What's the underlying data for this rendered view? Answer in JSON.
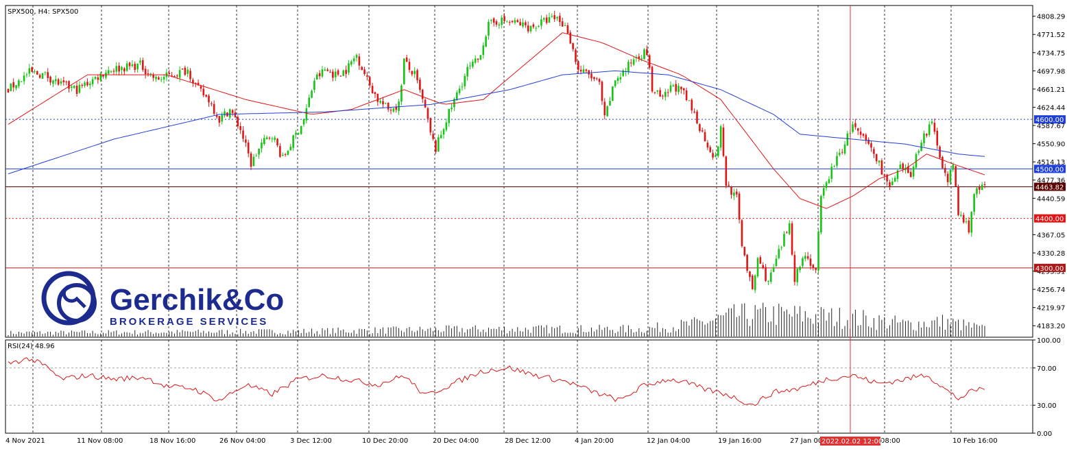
{
  "chart_data": [
    {
      "type": "candlestick",
      "title": "SPX500, H4:  SPX500",
      "symbol": "SPX500",
      "timeframe": "H4",
      "ylim": [
        4160,
        4830
      ],
      "price_ticks": [
        "4808.29",
        "4771.52",
        "4734.75",
        "4697.98",
        "4661.21",
        "4624.44",
        "4587.67",
        "4550.90",
        "4514.13",
        "4477.36",
        "4440.59",
        "4367.05",
        "4330.28",
        "4293.51",
        "4256.74",
        "4219.97",
        "4183.20"
      ],
      "x_labels": [
        "4 Nov 2021",
        "11 Nov 08:00",
        "18 Nov 16:00",
        "26 Nov 04:00",
        "3 Dec 12:00",
        "10 Dec 20:00",
        "20 Dec 04:00",
        "28 Dec 12:00",
        "4 Jan 20:00",
        "12 Jan 04:00",
        "19 Jan 16:00",
        "27 Jan 00:00",
        "08:00",
        "10 Feb 16:00"
      ],
      "cursor_time_label": "2022.02.02 12:00",
      "close_path_anchors": [
        [
          0,
          4660
        ],
        [
          8,
          4695
        ],
        [
          14,
          4690
        ],
        [
          20,
          4670
        ],
        [
          26,
          4660
        ],
        [
          32,
          4680
        ],
        [
          38,
          4700
        ],
        [
          44,
          4705
        ],
        [
          50,
          4710
        ],
        [
          56,
          4680
        ],
        [
          62,
          4690
        ],
        [
          68,
          4700
        ],
        [
          72,
          4660
        ],
        [
          76,
          4640
        ],
        [
          80,
          4600
        ],
        [
          84,
          4620
        ],
        [
          88,
          4580
        ],
        [
          92,
          4510
        ],
        [
          96,
          4550
        ],
        [
          100,
          4570
        ],
        [
          104,
          4520
        ],
        [
          108,
          4560
        ],
        [
          112,
          4600
        ],
        [
          116,
          4680
        ],
        [
          120,
          4700
        ],
        [
          124,
          4690
        ],
        [
          128,
          4700
        ],
        [
          132,
          4730
        ],
        [
          136,
          4680
        ],
        [
          140,
          4640
        ],
        [
          144,
          4620
        ],
        [
          148,
          4630
        ],
        [
          150,
          4720
        ],
        [
          152,
          4700
        ],
        [
          154,
          4690
        ],
        [
          158,
          4620
        ],
        [
          160,
          4570
        ],
        [
          162,
          4540
        ],
        [
          166,
          4600
        ],
        [
          170,
          4650
        ],
        [
          174,
          4700
        ],
        [
          178,
          4720
        ],
        [
          182,
          4790
        ],
        [
          186,
          4800
        ],
        [
          192,
          4795
        ],
        [
          198,
          4785
        ],
        [
          204,
          4800
        ],
        [
          208,
          4805
        ],
        [
          212,
          4780
        ],
        [
          216,
          4700
        ],
        [
          220,
          4690
        ],
        [
          224,
          4670
        ],
        [
          226,
          4600
        ],
        [
          230,
          4680
        ],
        [
          234,
          4700
        ],
        [
          238,
          4730
        ],
        [
          242,
          4735
        ],
        [
          244,
          4660
        ],
        [
          248,
          4640
        ],
        [
          252,
          4670
        ],
        [
          256,
          4650
        ],
        [
          260,
          4610
        ],
        [
          264,
          4560
        ],
        [
          268,
          4520
        ],
        [
          270,
          4580
        ],
        [
          272,
          4470
        ],
        [
          276,
          4440
        ],
        [
          278,
          4350
        ],
        [
          282,
          4250
        ],
        [
          284,
          4320
        ],
        [
          288,
          4270
        ],
        [
          292,
          4330
        ],
        [
          296,
          4390
        ],
        [
          298,
          4280
        ],
        [
          302,
          4330
        ],
        [
          306,
          4290
        ],
        [
          308,
          4440
        ],
        [
          312,
          4500
        ],
        [
          316,
          4540
        ],
        [
          320,
          4590
        ],
        [
          322,
          4570
        ],
        [
          326,
          4550
        ],
        [
          330,
          4510
        ],
        [
          334,
          4460
        ],
        [
          338,
          4500
        ],
        [
          342,
          4490
        ],
        [
          346,
          4560
        ],
        [
          350,
          4590
        ],
        [
          352,
          4550
        ],
        [
          356,
          4470
        ],
        [
          358,
          4510
        ],
        [
          360,
          4410
        ],
        [
          364,
          4380
        ],
        [
          366,
          4450
        ],
        [
          370,
          4465
        ]
      ],
      "bar_count": 371,
      "sma_short_anchors": [
        [
          0,
          4590
        ],
        [
          30,
          4690
        ],
        [
          60,
          4690
        ],
        [
          90,
          4640
        ],
        [
          115,
          4610
        ],
        [
          130,
          4620
        ],
        [
          150,
          4660
        ],
        [
          165,
          4630
        ],
        [
          180,
          4640
        ],
        [
          200,
          4730
        ],
        [
          210,
          4775
        ],
        [
          225,
          4755
        ],
        [
          240,
          4720
        ],
        [
          255,
          4690
        ],
        [
          270,
          4640
        ],
        [
          290,
          4500
        ],
        [
          300,
          4440
        ],
        [
          310,
          4420
        ],
        [
          320,
          4445
        ],
        [
          330,
          4480
        ],
        [
          340,
          4500
        ],
        [
          348,
          4530
        ],
        [
          358,
          4510
        ],
        [
          370,
          4488
        ]
      ],
      "sma_long_anchors": [
        [
          0,
          4490
        ],
        [
          40,
          4560
        ],
        [
          80,
          4610
        ],
        [
          120,
          4615
        ],
        [
          160,
          4630
        ],
        [
          190,
          4660
        ],
        [
          210,
          4690
        ],
        [
          230,
          4698
        ],
        [
          250,
          4690
        ],
        [
          270,
          4660
        ],
        [
          290,
          4610
        ],
        [
          300,
          4570
        ],
        [
          320,
          4560
        ],
        [
          340,
          4550
        ],
        [
          360,
          4530
        ],
        [
          370,
          4525
        ]
      ],
      "rsi_anchors": [
        [
          0,
          75
        ],
        [
          8,
          80
        ],
        [
          14,
          72
        ],
        [
          20,
          58
        ],
        [
          30,
          62
        ],
        [
          40,
          58
        ],
        [
          52,
          60
        ],
        [
          60,
          50
        ],
        [
          70,
          48
        ],
        [
          80,
          35
        ],
        [
          90,
          52
        ],
        [
          100,
          42
        ],
        [
          110,
          58
        ],
        [
          120,
          62
        ],
        [
          140,
          52
        ],
        [
          150,
          62
        ],
        [
          158,
          40
        ],
        [
          170,
          55
        ],
        [
          180,
          67
        ],
        [
          190,
          70
        ],
        [
          200,
          62
        ],
        [
          212,
          55
        ],
        [
          222,
          44
        ],
        [
          232,
          35
        ],
        [
          240,
          50
        ],
        [
          250,
          58
        ],
        [
          256,
          55
        ],
        [
          264,
          47
        ],
        [
          272,
          42
        ],
        [
          282,
          30
        ],
        [
          290,
          44
        ],
        [
          300,
          48
        ],
        [
          310,
          58
        ],
        [
          320,
          62
        ],
        [
          330,
          53
        ],
        [
          340,
          58
        ],
        [
          348,
          63
        ],
        [
          356,
          45
        ],
        [
          360,
          37
        ],
        [
          366,
          46
        ],
        [
          370,
          48
        ]
      ],
      "volume_profile_anchors": [
        [
          0,
          0.15
        ],
        [
          100,
          0.2
        ],
        [
          180,
          0.3
        ],
        [
          240,
          0.3
        ],
        [
          260,
          0.5
        ],
        [
          276,
          0.85
        ],
        [
          290,
          0.9
        ],
        [
          320,
          0.75
        ],
        [
          340,
          0.5
        ],
        [
          355,
          0.6
        ],
        [
          370,
          0.3
        ]
      ],
      "horizontal_levels": [
        {
          "label": "4600.00",
          "price": 4600,
          "style": "dotted",
          "color": "#1f3fd9"
        },
        {
          "label": "4500.00",
          "price": 4500,
          "style": "solid",
          "color": "#1f3fd9"
        },
        {
          "label": "4463.82",
          "price": 4463.82,
          "style": "solid",
          "color": "#5a0000"
        },
        {
          "label": "4400.00",
          "price": 4400,
          "style": "dotted",
          "color": "#e01515"
        },
        {
          "label": "4300.00",
          "price": 4300,
          "style": "solid",
          "color": "#b01818"
        }
      ],
      "colors": {
        "bull": "#16c416",
        "bear": "#e01515",
        "sma_short": "#e01515",
        "sma_long": "#1f3fd9",
        "rsi": "#d61818",
        "volume": "#222222",
        "grid": "#000000",
        "cursor": "#e03030"
      }
    },
    {
      "type": "line",
      "title": "RSI(24) 48.96",
      "ylim": [
        0,
        100
      ],
      "ticks": [
        "100.00",
        "70.00",
        "30.00",
        "0.00"
      ]
    }
  ],
  "logo": {
    "name": "Gerchik&Co",
    "subtitle": "BROKERAGE SERVICES"
  }
}
